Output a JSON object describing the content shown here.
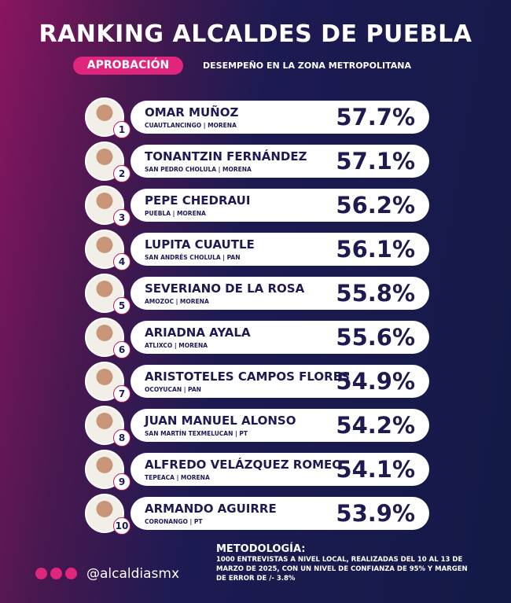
{
  "header": {
    "title": "RANKING ALCALDES DE PUEBLA",
    "badge": "APROBACIÓN",
    "subtitle": "DESEMPEÑO EN LA ZONA METROPOLITANA"
  },
  "rows": [
    {
      "rank": "1",
      "name": "OMAR MUÑOZ",
      "detail": "CUAUTLANCINGO | MORENA",
      "value": "57.7%"
    },
    {
      "rank": "2",
      "name": "TONANTZIN FERNÁNDEZ",
      "detail": "SAN PEDRO CHOLULA | MORENA",
      "value": "57.1%"
    },
    {
      "rank": "3",
      "name": "PEPE CHEDRAUI",
      "detail": "PUEBLA | MORENA",
      "value": "56.2%"
    },
    {
      "rank": "4",
      "name": "LUPITA CUAUTLE",
      "detail": "SAN ANDRÉS CHOLULA | PAN",
      "value": "56.1%"
    },
    {
      "rank": "5",
      "name": "SEVERIANO DE LA ROSA",
      "detail": "AMOZOC | MORENA",
      "value": "55.8%"
    },
    {
      "rank": "6",
      "name": "ARIADNA AYALA",
      "detail": "ATLIXCO | MORENA",
      "value": "55.6%"
    },
    {
      "rank": "7",
      "name": "ARISTOTELES CAMPOS FLORES",
      "detail": "OCOYUCAN | PAN",
      "value": "54.9%"
    },
    {
      "rank": "8",
      "name": "JUAN MANUEL ALONSO",
      "detail": "SAN MARTÍN TEXMELUCAN | PT",
      "value": "54.2%"
    },
    {
      "rank": "9",
      "name": "ALFREDO VELÁZQUEZ ROMEO",
      "detail": "TEPEACA | MORENA",
      "value": "54.1%"
    },
    {
      "rank": "10",
      "name": "ARMANDO AGUIRRE",
      "detail": "CORONANGO | PT",
      "value": "53.9%"
    }
  ],
  "footer": {
    "handle": "@alcaldiasmx",
    "methodology_title": "METODOLOGÍA:",
    "methodology": "1000 ENTREVISTAS A NIVEL LOCAL, REALIZADAS DEL 10 AL 13 DE MARZO DE 2025, CON UN NIVEL DE CONFIANZA DE 95% Y MARGEN DE ERROR DE /- 3.8%"
  }
}
